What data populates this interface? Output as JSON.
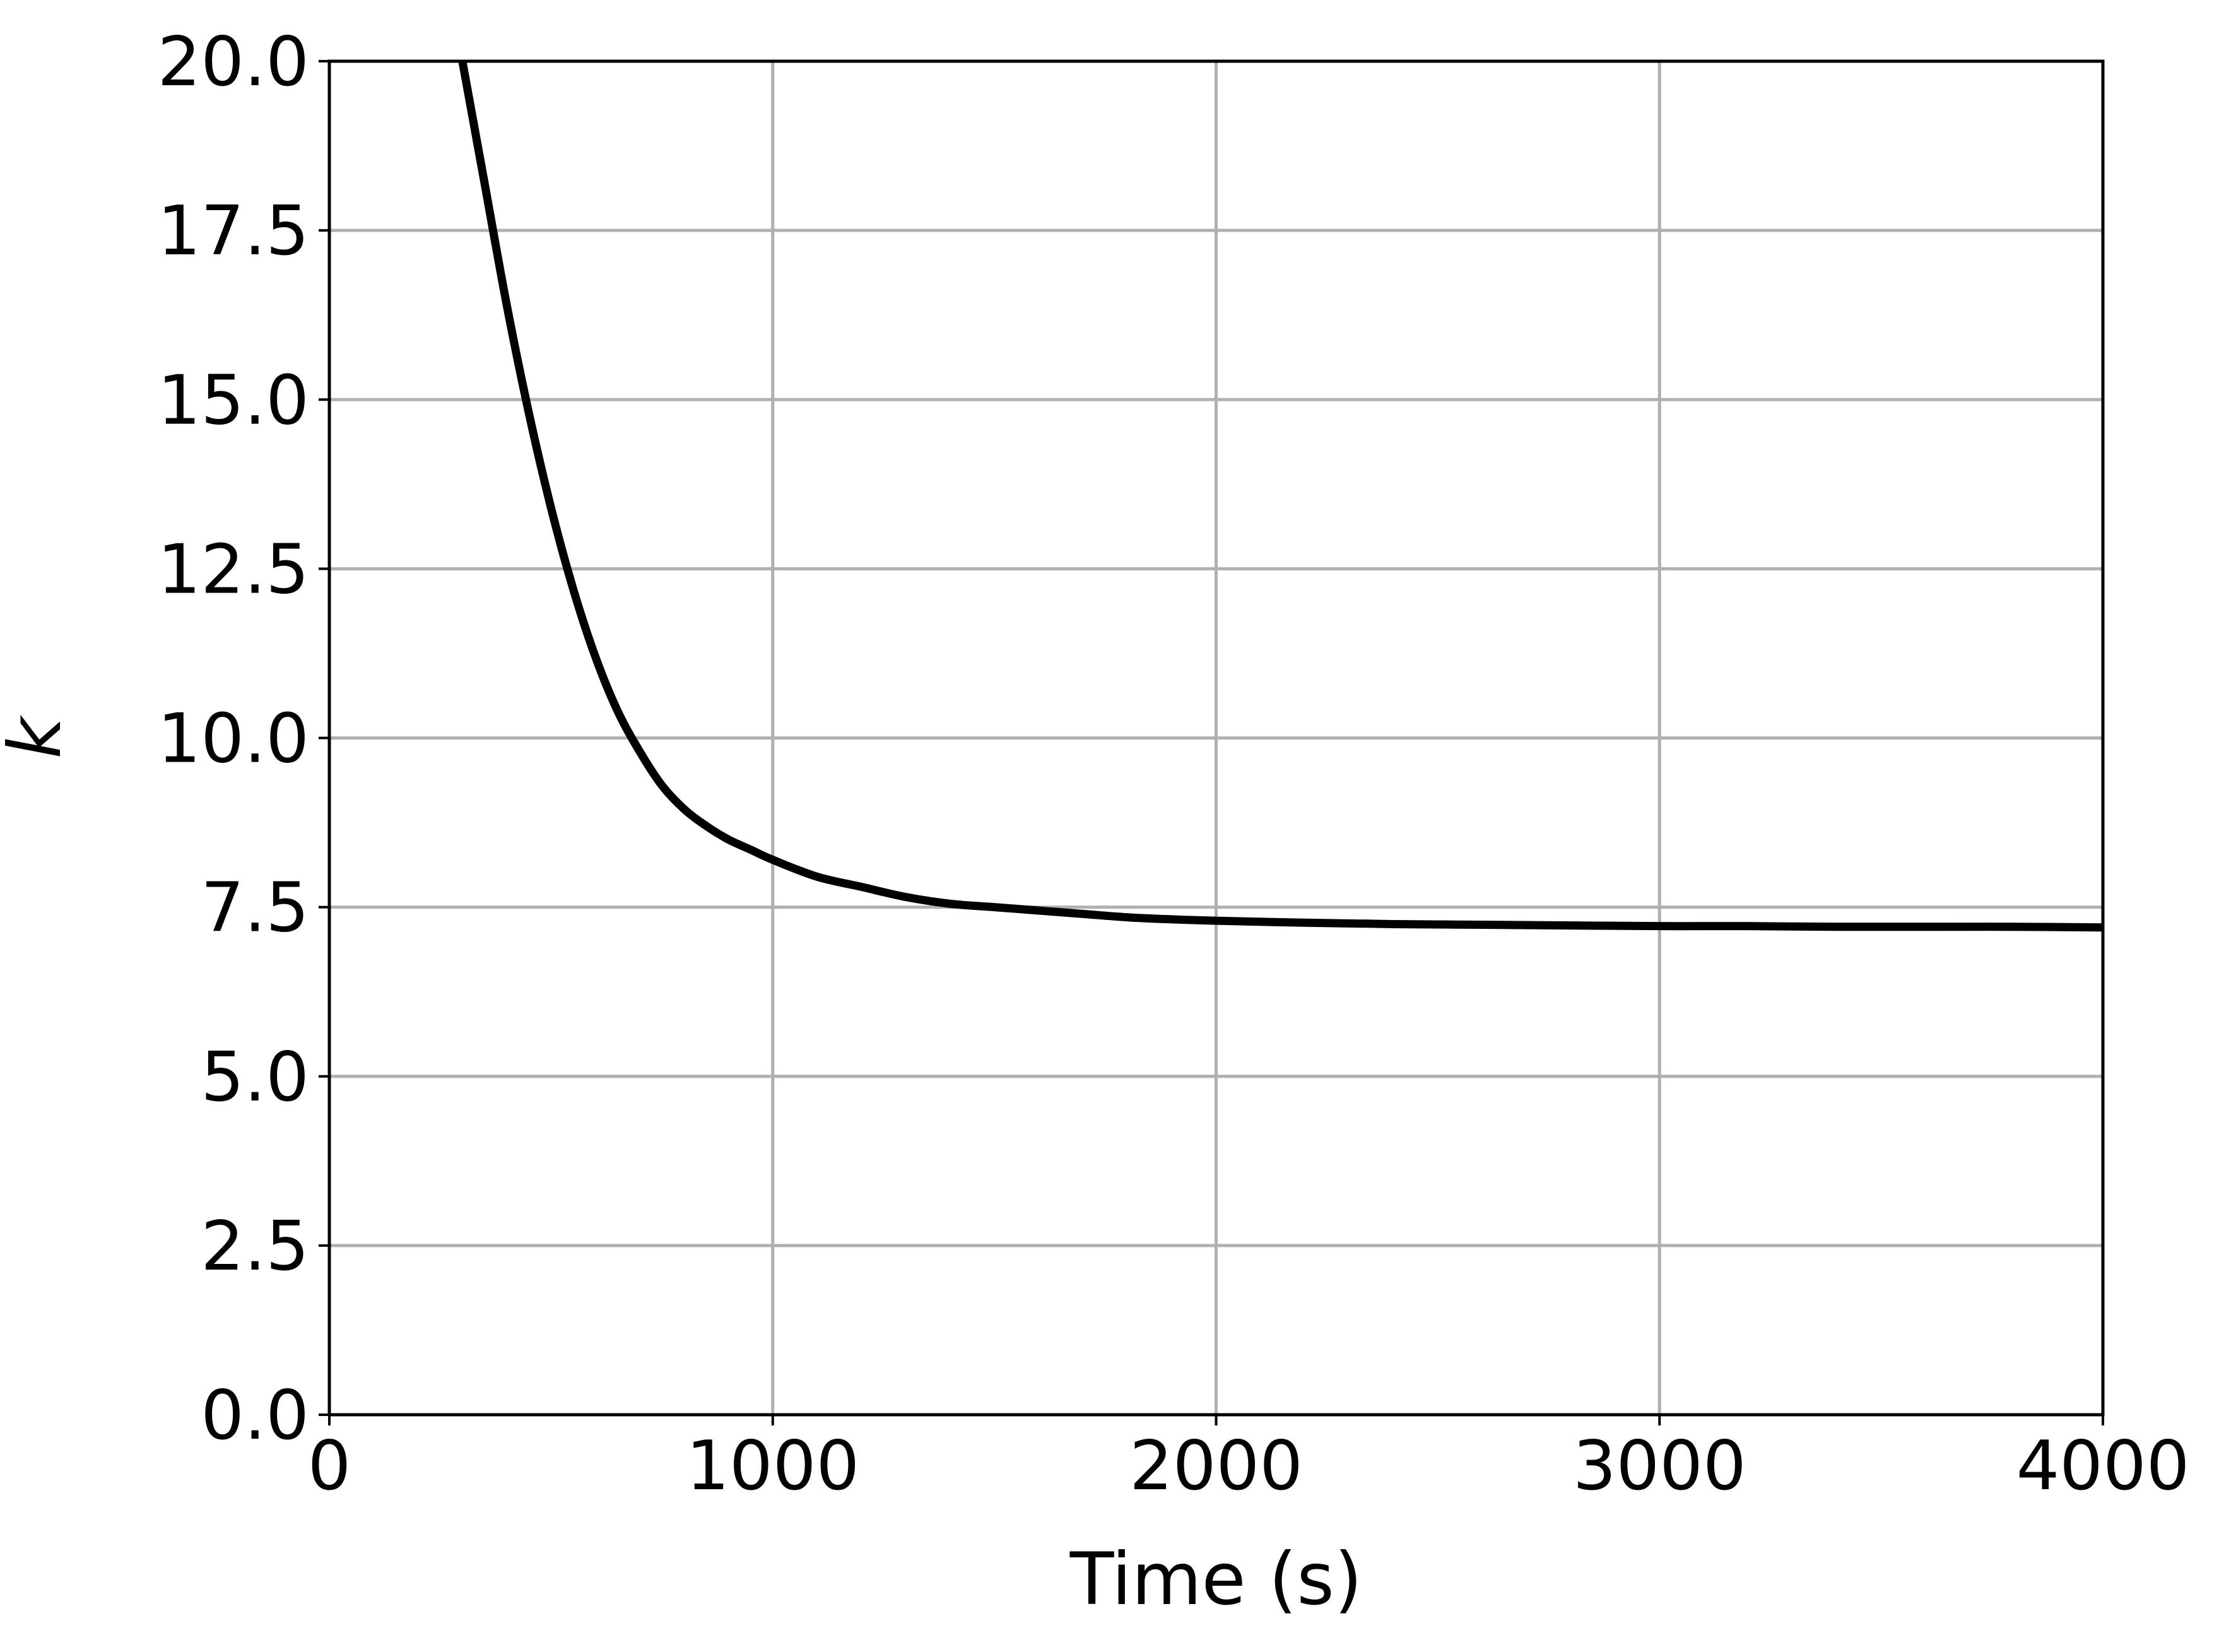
{
  "chart_data": {
    "type": "line",
    "title": "",
    "xlabel": "Time (s)",
    "ylabel": "k",
    "xlim": [
      0,
      4000
    ],
    "ylim": [
      0,
      20
    ],
    "x_ticks": [
      "0",
      "1000",
      "2000",
      "3000",
      "4000"
    ],
    "y_ticks": [
      "0.0",
      "2.5",
      "5.0",
      "7.5",
      "10.0",
      "12.5",
      "15.0",
      "17.5",
      "20.0"
    ],
    "grid": true,
    "legend": "none",
    "colors": {
      "line": "#000000",
      "grid": "#b0b0b0",
      "axes": "#000000"
    },
    "series": [
      {
        "x": [
          300,
          350,
          400,
          450,
          500,
          550,
          600,
          650,
          700,
          750,
          800,
          850,
          900,
          950,
          1000,
          1100,
          1200,
          1300,
          1400,
          1500,
          1600,
          1700,
          1800,
          1900,
          2000,
          2200,
          2400,
          2600,
          2800,
          3000,
          3200,
          3400,
          3600,
          3800,
          4000
        ],
        "values": [
          20.0,
          18.2,
          16.4,
          14.8,
          13.4,
          12.2,
          11.2,
          10.4,
          9.8,
          9.3,
          8.95,
          8.7,
          8.5,
          8.35,
          8.2,
          7.95,
          7.8,
          7.65,
          7.55,
          7.5,
          7.45,
          7.4,
          7.35,
          7.32,
          7.3,
          7.27,
          7.25,
          7.24,
          7.23,
          7.22,
          7.22,
          7.21,
          7.21,
          7.21,
          7.2
        ]
      }
    ]
  }
}
